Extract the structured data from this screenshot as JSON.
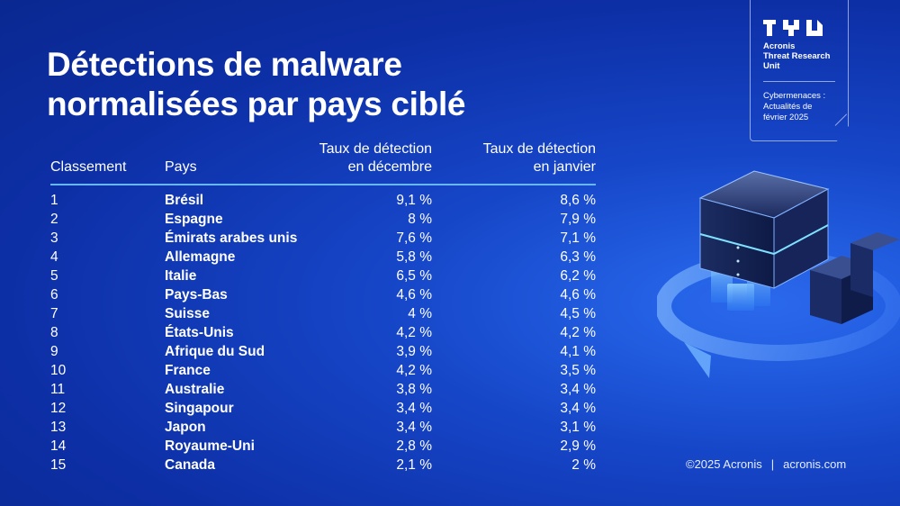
{
  "title_lines": [
    "Détections de malware",
    "normalisées par pays ciblé"
  ],
  "badge": {
    "org_lines": [
      "Acronis",
      "Threat Research",
      "Unit"
    ],
    "sub_lines": [
      "Cybermenaces :",
      "Actualités de",
      "février 2025"
    ]
  },
  "table": {
    "headers": {
      "rank": "Classement",
      "country": "Pays",
      "dec_line1": "Taux de détection",
      "dec_line2": "en décembre",
      "jan_line1": "Taux de détection",
      "jan_line2": "en janvier"
    },
    "rows": [
      {
        "rank": "1",
        "country": "Brésil",
        "dec": "9,1 %",
        "jan": "8,6 %"
      },
      {
        "rank": "2",
        "country": "Espagne",
        "dec": "8 %",
        "jan": "7,9 %"
      },
      {
        "rank": "3",
        "country": "Émirats arabes unis",
        "dec": "7,6 %",
        "jan": "7,1 %"
      },
      {
        "rank": "4",
        "country": "Allemagne",
        "dec": "5,8 %",
        "jan": "6,3 %"
      },
      {
        "rank": "5",
        "country": "Italie",
        "dec": "6,5 %",
        "jan": "6,2 %"
      },
      {
        "rank": "6",
        "country": "Pays-Bas",
        "dec": "4,6 %",
        "jan": "4,6 %"
      },
      {
        "rank": "7",
        "country": "Suisse",
        "dec": "4 %",
        "jan": "4,5 %"
      },
      {
        "rank": "8",
        "country": "États-Unis",
        "dec": "4,2 %",
        "jan": "4,2 %"
      },
      {
        "rank": "9",
        "country": "Afrique du Sud",
        "dec": "3,9 %",
        "jan": "4,1 %"
      },
      {
        "rank": "10",
        "country": "France",
        "dec": "4,2 %",
        "jan": "3,5 %"
      },
      {
        "rank": "11",
        "country": "Australie",
        "dec": "3,8 %",
        "jan": "3,4 %"
      },
      {
        "rank": "12",
        "country": "Singapour",
        "dec": "3,4 %",
        "jan": "3,4 %"
      },
      {
        "rank": "13",
        "country": "Japon",
        "dec": "3,4 %",
        "jan": "3,1 %"
      },
      {
        "rank": "14",
        "country": "Royaume-Uni",
        "dec": "2,8 %",
        "jan": "2,9 %"
      },
      {
        "rank": "15",
        "country": "Canada",
        "dec": "2,1 %",
        "jan": "2 %"
      }
    ]
  },
  "footer": {
    "copyright": "©2025 Acronis",
    "separator": "|",
    "site": "acronis.com"
  },
  "chart_data": {
    "type": "table",
    "title": "Détections de malware normalisées par pays ciblé",
    "columns": [
      "Classement",
      "Pays",
      "Taux de détection en décembre",
      "Taux de détection en janvier"
    ],
    "rows": [
      [
        1,
        "Brésil",
        9.1,
        8.6
      ],
      [
        2,
        "Espagne",
        8.0,
        7.9
      ],
      [
        3,
        "Émirats arabes unis",
        7.6,
        7.1
      ],
      [
        4,
        "Allemagne",
        5.8,
        6.3
      ],
      [
        5,
        "Italie",
        6.5,
        6.2
      ],
      [
        6,
        "Pays-Bas",
        4.6,
        4.6
      ],
      [
        7,
        "Suisse",
        4.0,
        4.5
      ],
      [
        8,
        "États-Unis",
        4.2,
        4.2
      ],
      [
        9,
        "Afrique du Sud",
        3.9,
        4.1
      ],
      [
        10,
        "France",
        4.2,
        3.5
      ],
      [
        11,
        "Australie",
        3.8,
        3.4
      ],
      [
        12,
        "Singapour",
        3.4,
        3.4
      ],
      [
        13,
        "Japon",
        3.4,
        3.1
      ],
      [
        14,
        "Royaume-Uni",
        2.8,
        2.9
      ],
      [
        15,
        "Canada",
        2.1,
        2.0
      ]
    ]
  },
  "colors": {
    "background": "#1646c8",
    "accent_line": "#67b8f2",
    "text": "#ffffff"
  }
}
